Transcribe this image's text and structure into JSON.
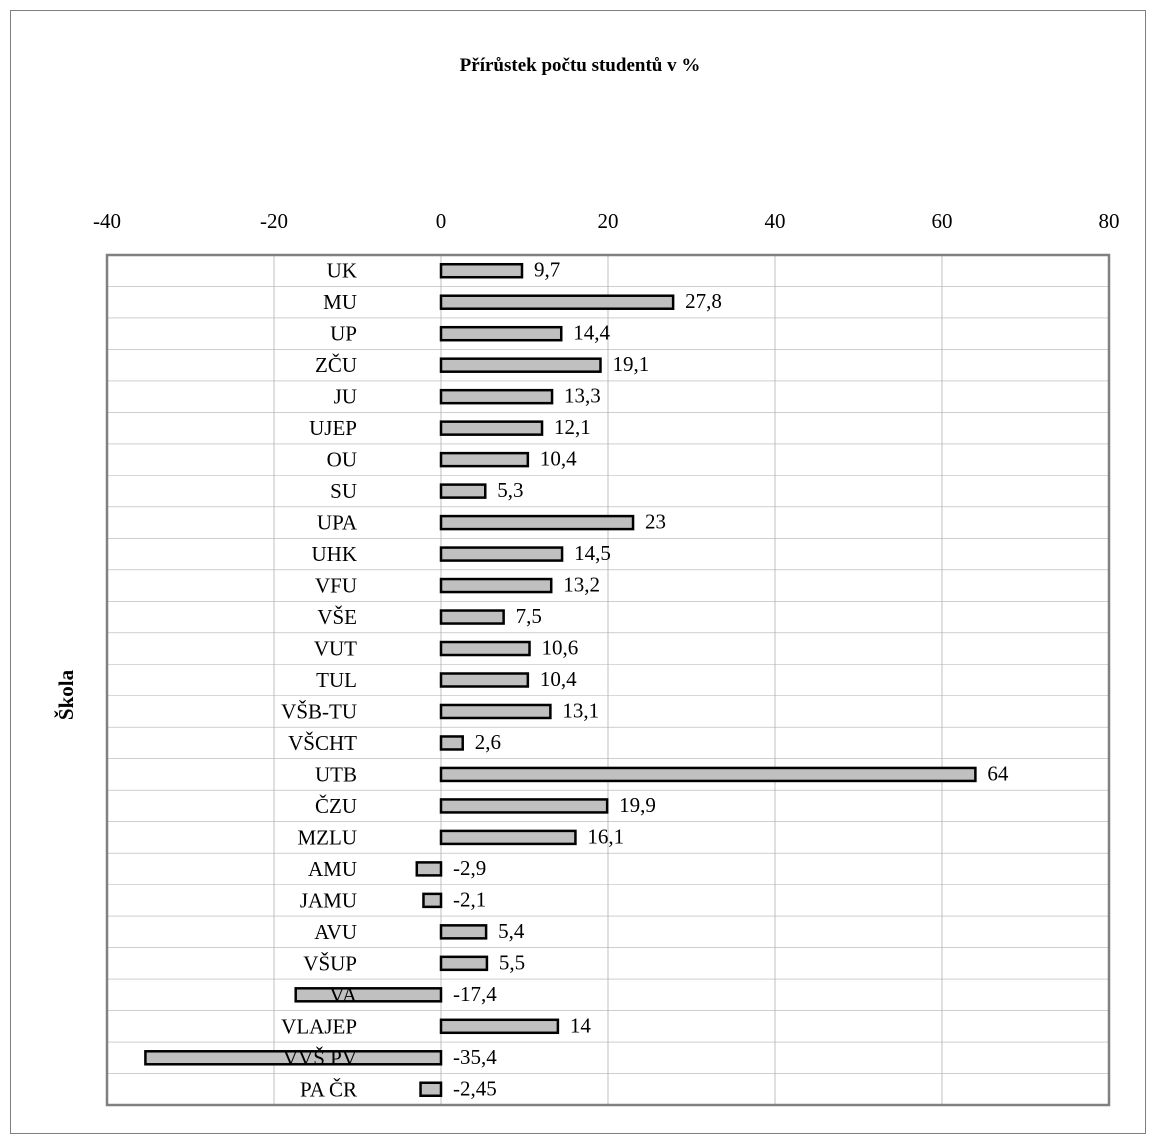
{
  "chart_data": {
    "type": "bar",
    "orientation": "horizontal",
    "title": "Přírůstek počtu studentů v %",
    "xlabel": "",
    "ylabel": "Škola",
    "xlim": [
      -40,
      80
    ],
    "x_ticks": [
      -40,
      -20,
      0,
      20,
      40,
      60,
      80
    ],
    "x_axis_position": "top",
    "grid": true,
    "categories": [
      "UK",
      "MU",
      "UP",
      "ZČU",
      "JU",
      "UJEP",
      "OU",
      "SU",
      "UPA",
      "UHK",
      "VFU",
      "VŠE",
      "VUT",
      "TUL",
      "VŠB-TU",
      "VŠCHT",
      "UTB",
      "ČZU",
      "MZLU",
      "AMU",
      "JAMU",
      "AVU",
      "VŠUP",
      "VA",
      "VLAJEP",
      "VVŠ PV",
      "PA ČR"
    ],
    "values": [
      9.7,
      27.8,
      14.4,
      19.1,
      13.3,
      12.1,
      10.4,
      5.3,
      23,
      14.5,
      13.2,
      7.5,
      10.6,
      10.4,
      13.1,
      2.6,
      64,
      19.9,
      16.1,
      -2.9,
      -2.1,
      5.4,
      5.5,
      -17.4,
      14,
      -35.4,
      -2.45
    ],
    "value_labels": [
      "9,7",
      "27,8",
      "14,4",
      "19,1",
      "13,3",
      "12,1",
      "10,4",
      "5,3",
      "23",
      "14,5",
      "13,2",
      "7,5",
      "10,6",
      "10,4",
      "13,1",
      "2,6",
      "64",
      "19,9",
      "16,1",
      "-2,9",
      "-2,1",
      "5,4",
      "5,5",
      "-17,4",
      "14",
      "-35,4",
      "-2,45"
    ],
    "bar_color": "#c0c0c0",
    "bar_edge_color": "#000000",
    "grid_color": "#b0b0b0",
    "plot_border_color": "#808080"
  }
}
